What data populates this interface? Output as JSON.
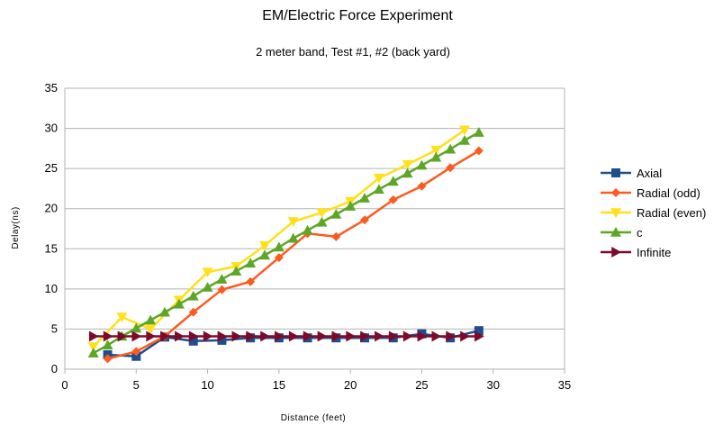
{
  "chart_data": {
    "type": "line",
    "title": "EM/Electric Force Experiment",
    "subtitle": "2 meter band, Test #1, #2 (back yard)",
    "xlabel": "Distance (feet)",
    "ylabel": "Delay(ns)",
    "xlim": [
      0,
      35
    ],
    "ylim": [
      0,
      35
    ],
    "xticks": [
      0,
      5,
      10,
      15,
      20,
      25,
      30,
      35
    ],
    "yticks": [
      0,
      5,
      10,
      15,
      20,
      25,
      30,
      35
    ],
    "grid": "horizontal",
    "legend_position": "right",
    "series": [
      {
        "name": "Axial",
        "color": "#1f4e8c",
        "marker": "square",
        "x": [
          3,
          5,
          7,
          9,
          11,
          13,
          15,
          17,
          19,
          21,
          23,
          25,
          27,
          29
        ],
        "y": [
          1.8,
          1.6,
          4.0,
          3.5,
          3.6,
          3.9,
          3.9,
          3.9,
          3.9,
          3.9,
          3.9,
          4.4,
          3.9,
          4.8
        ]
      },
      {
        "name": "Radial (odd)",
        "color": "#ff5a1f",
        "marker": "diamond",
        "x": [
          3,
          5,
          7,
          9,
          11,
          13,
          15,
          17,
          19,
          21,
          23,
          25,
          27,
          29
        ],
        "y": [
          1.3,
          2.2,
          4.1,
          7.1,
          9.9,
          10.9,
          13.9,
          16.9,
          16.5,
          18.6,
          21.1,
          22.8,
          25.1,
          27.2
        ]
      },
      {
        "name": "Radial (even)",
        "color": "#ffe01a",
        "marker": "triangle-down",
        "x": [
          2,
          4,
          6,
          8,
          10,
          12,
          14,
          16,
          18,
          20,
          22,
          24,
          26,
          28
        ],
        "y": [
          2.8,
          6.5,
          5.0,
          8.6,
          12.1,
          12.8,
          15.4,
          18.4,
          19.5,
          20.9,
          23.8,
          25.5,
          27.3,
          29.8
        ]
      },
      {
        "name": "c",
        "color": "#5ea626",
        "marker": "triangle-up",
        "x": [
          2,
          3,
          4,
          5,
          6,
          7,
          8,
          9,
          10,
          11,
          12,
          13,
          14,
          15,
          16,
          17,
          18,
          19,
          20,
          21,
          22,
          23,
          24,
          25,
          26,
          27,
          28,
          29
        ],
        "y": [
          2.0,
          3.0,
          4.1,
          5.1,
          6.1,
          7.1,
          8.1,
          9.1,
          10.2,
          11.2,
          12.2,
          13.2,
          14.2,
          15.2,
          16.3,
          17.3,
          18.3,
          19.3,
          20.3,
          21.3,
          22.4,
          23.4,
          24.4,
          25.4,
          26.4,
          27.4,
          28.5,
          29.5
        ]
      },
      {
        "name": "Infinite",
        "color": "#7e0a2a",
        "marker": "triangle-right",
        "x": [
          2,
          3,
          4,
          5,
          6,
          7,
          8,
          9,
          10,
          11,
          12,
          13,
          14,
          15,
          16,
          17,
          18,
          19,
          20,
          21,
          22,
          23,
          24,
          25,
          26,
          27,
          28,
          29
        ],
        "y": [
          4.1,
          4.1,
          4.1,
          4.1,
          4.1,
          4.1,
          4.1,
          4.1,
          4.1,
          4.1,
          4.1,
          4.1,
          4.1,
          4.1,
          4.1,
          4.1,
          4.1,
          4.1,
          4.1,
          4.1,
          4.1,
          4.1,
          4.1,
          4.1,
          4.1,
          4.1,
          4.1,
          4.1
        ]
      }
    ]
  }
}
